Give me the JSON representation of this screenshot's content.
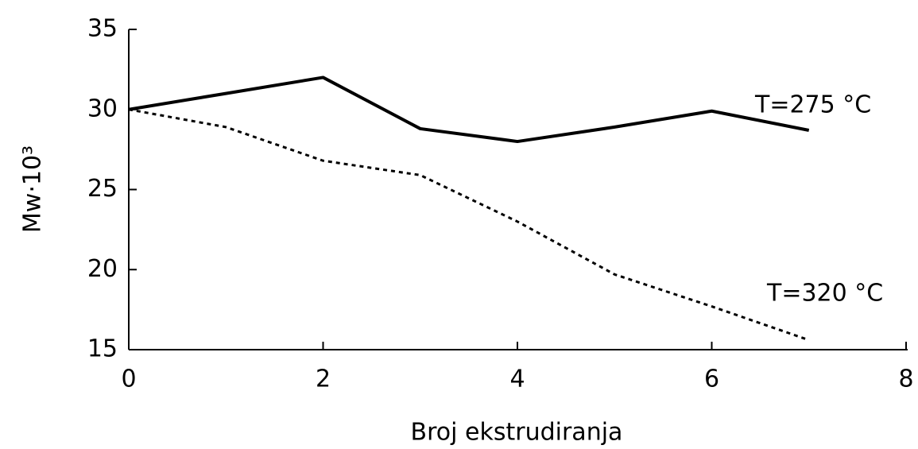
{
  "chart_data": {
    "type": "line",
    "xlabel": "Broj ekstrudiranja",
    "ylabel": "Mw·10³",
    "x": [
      0,
      1,
      2,
      3,
      4,
      5,
      6,
      7
    ],
    "series": [
      {
        "name": "T=275 °C",
        "color": "#000000",
        "linestyle": "solid",
        "values": [
          30,
          31,
          32,
          28.8,
          28,
          28.9,
          29.9,
          28.7
        ]
      },
      {
        "name": "T=320 °C",
        "color": "#000000",
        "linestyle": "dotted",
        "values": [
          30,
          28.9,
          26.8,
          25.9,
          23,
          19.7,
          17.7,
          15.6
        ]
      }
    ],
    "xlim": [
      0,
      8
    ],
    "xticks": [
      0,
      2,
      4,
      6,
      8
    ],
    "ylim": [
      15,
      35
    ],
    "yticks": [
      15,
      20,
      25,
      30,
      35
    ],
    "grid": false
  }
}
